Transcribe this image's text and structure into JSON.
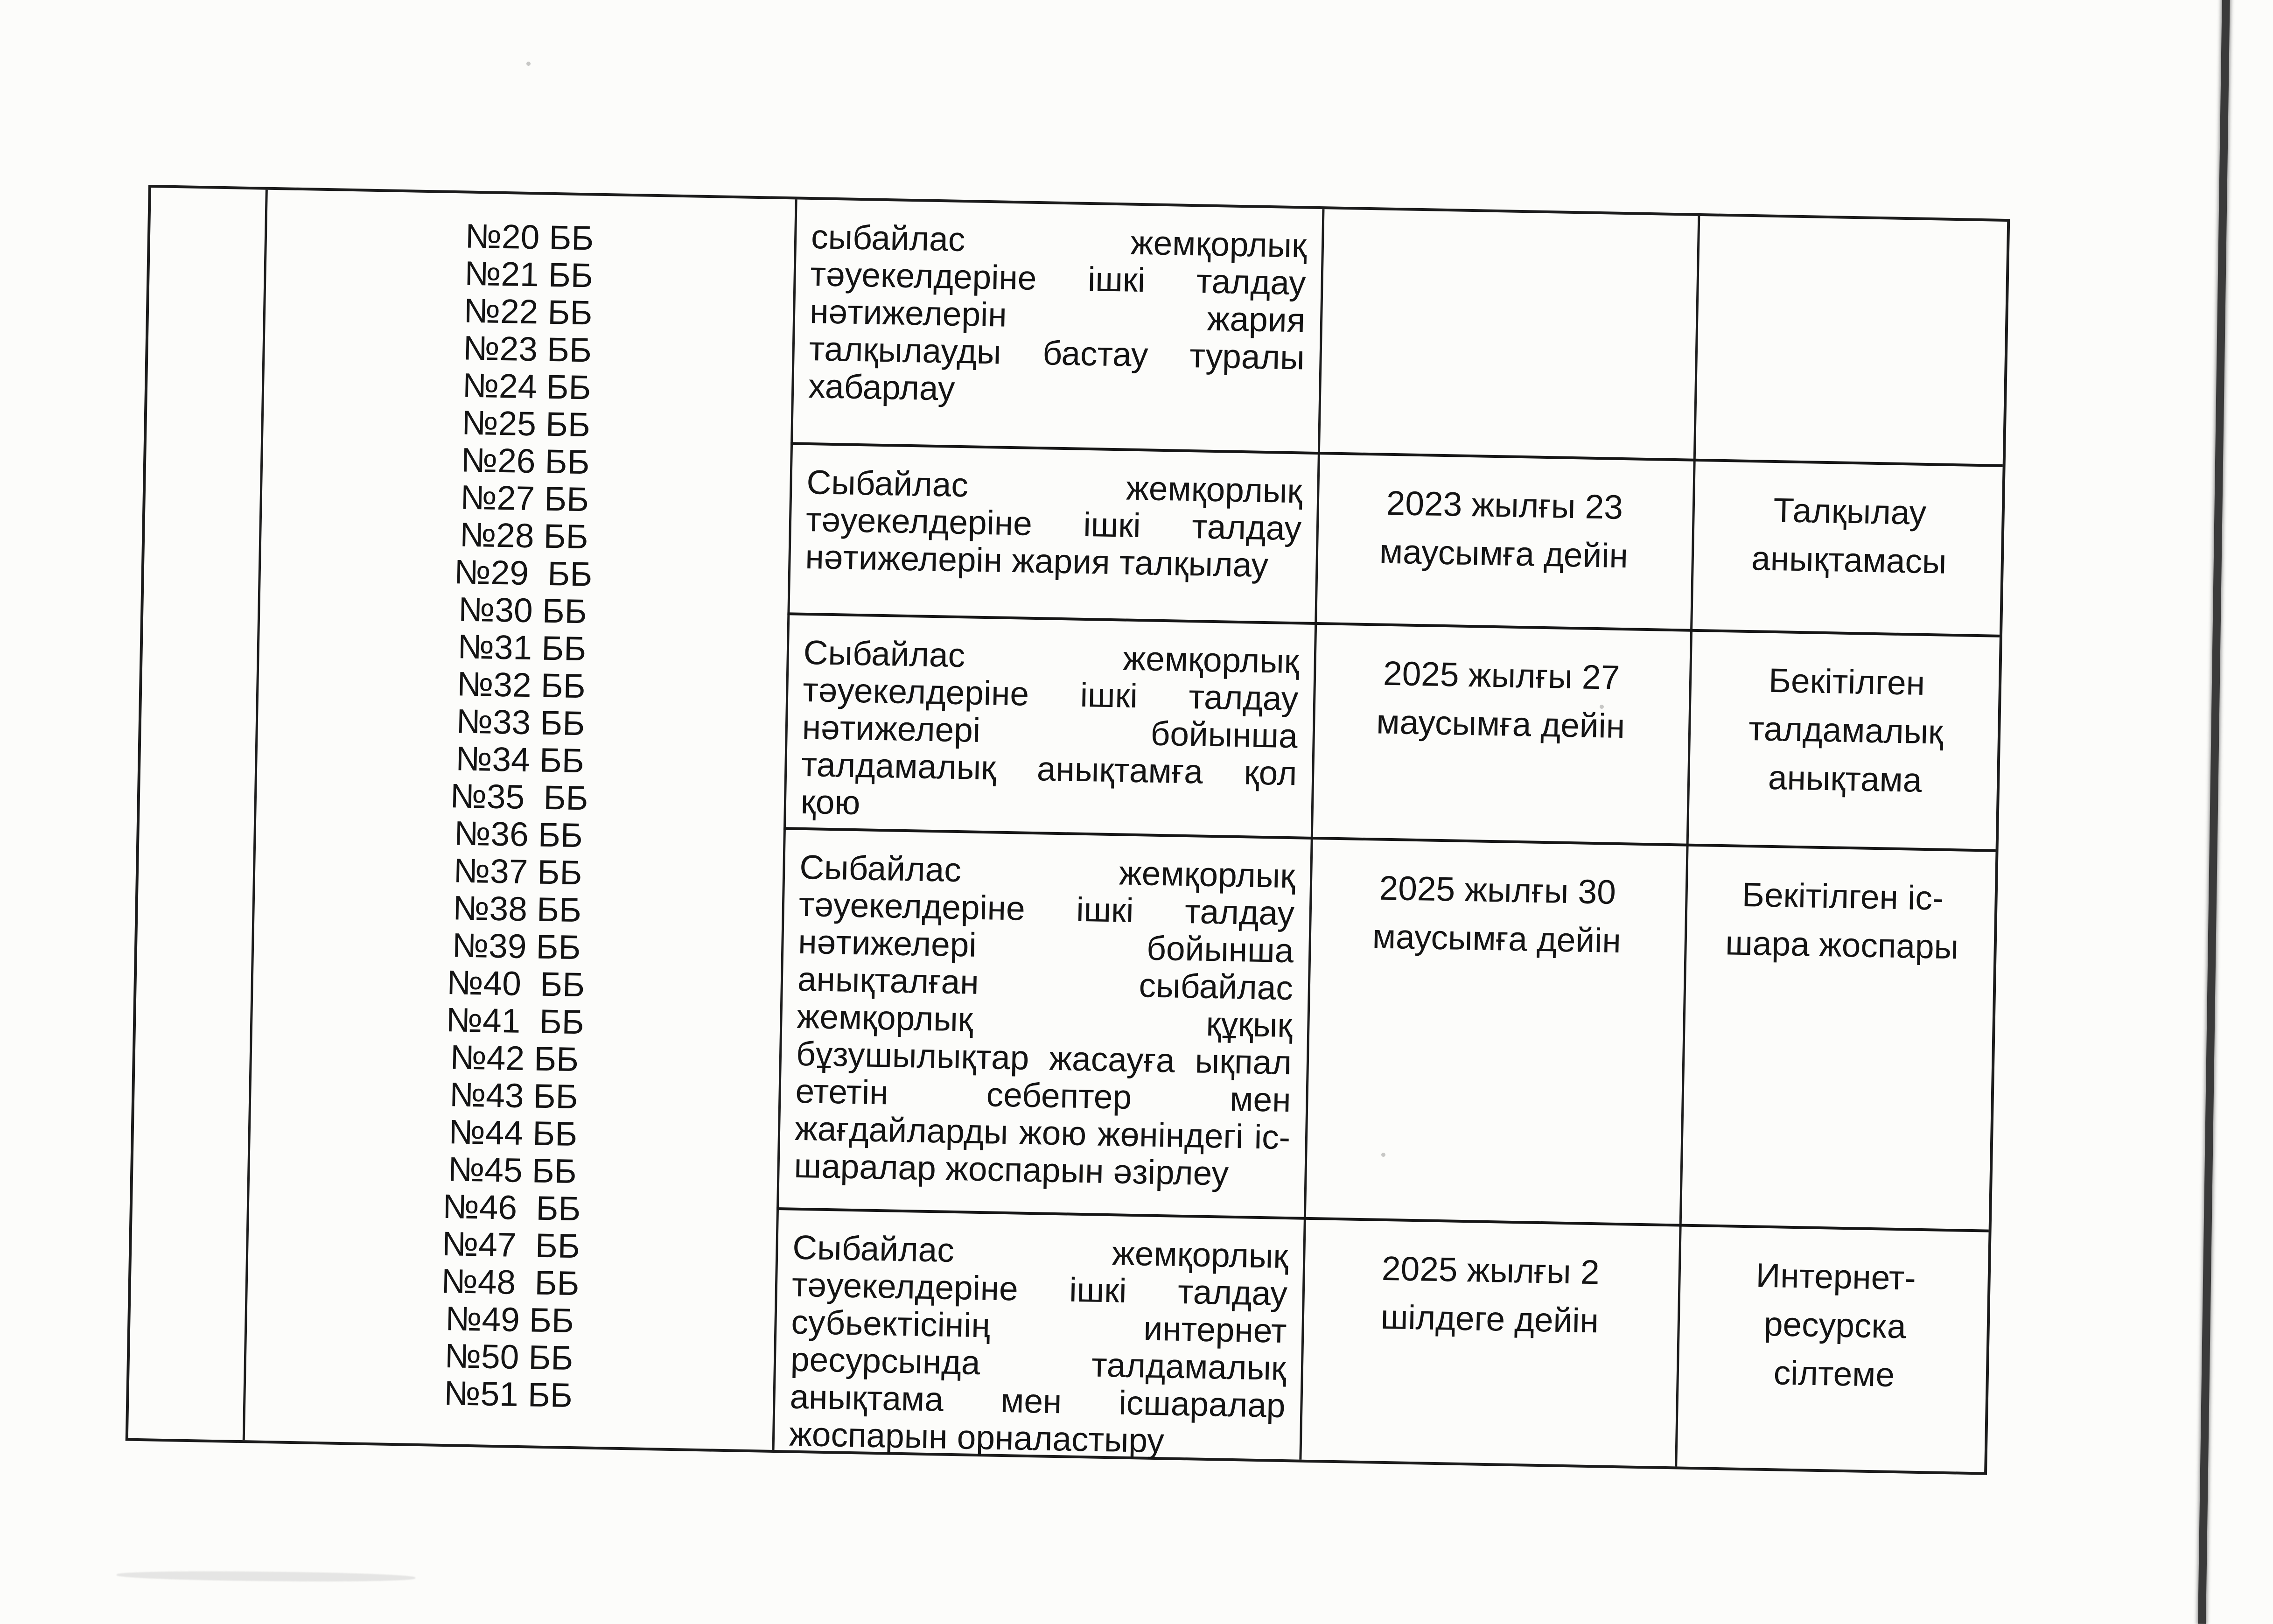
{
  "page": {
    "colors": {
      "paper": "#fcfcfa",
      "ink": "#141414",
      "table_border": "#1c1c1c",
      "scanner_streak": "#3a3a3a"
    }
  },
  "table": {
    "codes": [
      "№20 ББ",
      "№21 ББ",
      "№22 ББ",
      "№23 ББ",
      "№24 ББ",
      "№25 ББ",
      "№26 ББ",
      "№27 ББ",
      "№28 ББ",
      "№29  ББ",
      "№30 ББ",
      "№31 ББ",
      "№32 ББ",
      "№33 ББ",
      "№34 ББ",
      "№35  ББ",
      "№36 ББ",
      "№37 ББ",
      "№38 ББ",
      "№39 ББ",
      "№40  ББ",
      "№41  ББ",
      "№42 ББ",
      "№43 ББ",
      "№44 ББ",
      "№45 ББ",
      "№46  ББ",
      "№47  ББ",
      "№48  ББ",
      "№49 ББ",
      "№50 ББ",
      "№51 ББ"
    ],
    "rows": [
      {
        "activity": [
          "сыбайлас жемқорлық",
          "тәуекелдеріне ішкі талдау",
          "нәтижелерін жария",
          "талқылауды бастау туралы",
          "хабарлау"
        ],
        "deadline": [],
        "result": []
      },
      {
        "activity": [
          "Сыбайлас жемқорлық",
          "тәуекелдеріне ішкі талдау",
          "нәтижелерін жария талқылау"
        ],
        "deadline": [
          "2023 жылғы 23",
          "маусымға дейін"
        ],
        "result": [
          "Талқылау",
          "анықтамасы"
        ]
      },
      {
        "activity": [
          "Сыбайлас жемқорлық",
          "тәуекелдеріне ішкі талдау",
          "нәтижелері бойынша",
          "талдамалық анықтамға қол",
          "қою"
        ],
        "deadline": [
          "2025 жылғы 27",
          "маусымға дейін"
        ],
        "result": [
          "Бекітілген",
          "талдамалық",
          "анықтама"
        ]
      },
      {
        "activity": [
          "Сыбайлас жемқорлық",
          "тәуекелдеріне ішкі талдау",
          "нәтижелері бойынша",
          "анықталған сыбайлас",
          "жемқорлық құқық",
          "бұзушылықтар жасауға ықпал",
          "ететін себептер мен",
          "жағдайларды жою жөніндегі іс-",
          "шаралар жоспарын әзірлеу"
        ],
        "deadline": [
          "2025 жылғы 30",
          "маусымға дейін"
        ],
        "result": [
          "Бекітілген іс-",
          "шара жоспары"
        ]
      },
      {
        "activity": [
          "Сыбайлас жемқорлық",
          "тәуекелдеріне ішкі талдау",
          "субьектісінің интернет",
          "ресурсында талдамалық",
          "анықтама мен ісшаралар",
          "жоспарын орналастыру"
        ],
        "deadline": [
          "2025 жылғы 2",
          "шілдеге дейін"
        ],
        "result": [
          "Интернет-",
          "ресурска",
          "сілтеме"
        ]
      }
    ]
  }
}
